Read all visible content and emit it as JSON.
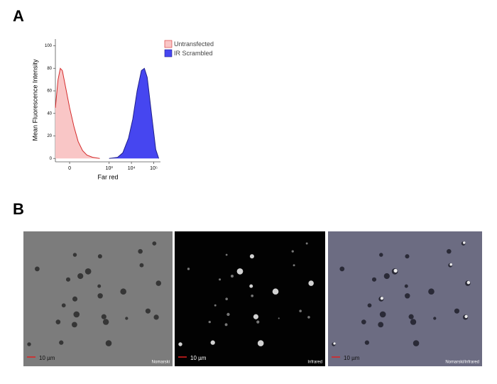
{
  "panel_letters": [
    "A",
    "B"
  ],
  "chart_data": {
    "type": "area",
    "xscale": "biexponential",
    "ylabel": "Mean Fluorescence Intensity",
    "xlabel": "Far red",
    "xlim": [
      -70,
      200000
    ],
    "ylim": [
      -3,
      106
    ],
    "xticks": [
      0,
      {
        "value": 1000,
        "label": "10³"
      },
      {
        "value": 10000,
        "label": "10⁴"
      },
      {
        "value": 100000,
        "label": "10⁵"
      }
    ],
    "yticks": [
      0,
      20,
      40,
      60,
      80,
      100
    ],
    "legend": "upper right",
    "series": [
      {
        "name": "Untransfected",
        "color": "#d42a2a",
        "fill": "#f9c6c6",
        "x": [
          -70,
          -51,
          -38,
          -28,
          -16,
          0,
          16,
          34,
          60,
          98,
          180,
          380
        ],
        "values": [
          45,
          70,
          80,
          78,
          65,
          45,
          28,
          15,
          7,
          3,
          1,
          0
        ]
      },
      {
        "name": "IR Scrambled",
        "color": "#20208a",
        "fill": "#4646f0",
        "x": [
          1000,
          2400,
          4100,
          7400,
          11500,
          18000,
          28000,
          38000,
          51000,
          79000,
          123000,
          167000
        ],
        "values": [
          0,
          1,
          5,
          18,
          35,
          60,
          78,
          80,
          72,
          40,
          8,
          0
        ]
      }
    ]
  },
  "micrographs": [
    {
      "label": "Nomarski",
      "scale": "10 µm"
    },
    {
      "label": "Infrared",
      "scale": "10 µm"
    },
    {
      "label": "Nomarski/Infrared",
      "scale": "10 µm"
    }
  ]
}
